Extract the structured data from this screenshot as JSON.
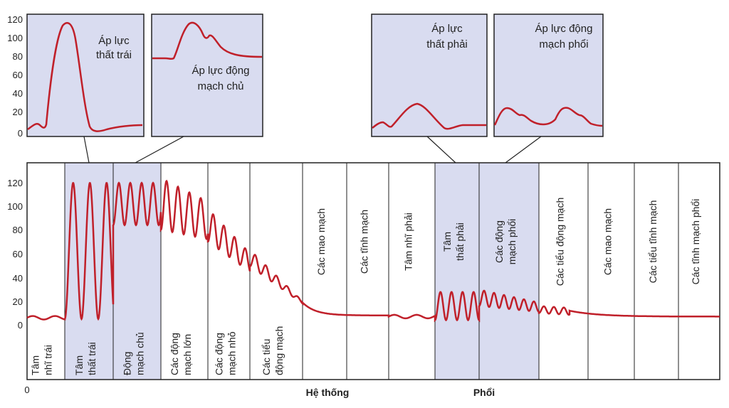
{
  "colors": {
    "curve": "#c0202a",
    "highlight": "#d9dcf0",
    "border": "#222222"
  },
  "y_ticks": [
    "120",
    "100",
    "80",
    "60",
    "40",
    "20",
    "0"
  ],
  "x_origin_label": "0",
  "sections": {
    "systemic": "Hệ thống",
    "pulmonary": "Phổi"
  },
  "insets": [
    {
      "id": "lv",
      "lines": [
        "Áp lực",
        "thất trái"
      ]
    },
    {
      "id": "ao",
      "lines": [
        "Áp lực động",
        "mạch chủ"
      ]
    },
    {
      "id": "rv",
      "lines": [
        "Áp lực",
        "thất phải"
      ]
    },
    {
      "id": "pa",
      "lines": [
        "Áp lực động",
        "mạch phổi"
      ]
    }
  ],
  "segments": [
    {
      "id": "la",
      "lines": [
        "Tâm",
        "nhĩ trái"
      ],
      "highlight": false
    },
    {
      "id": "lv",
      "lines": [
        "Tâm",
        "thất trái"
      ],
      "highlight": true
    },
    {
      "id": "ao",
      "lines": [
        "Động",
        "mạch chủ"
      ],
      "highlight": true
    },
    {
      "id": "la-art",
      "lines": [
        "Các động",
        "mạch lớn"
      ],
      "highlight": false
    },
    {
      "id": "sm-art",
      "lines": [
        "Các động",
        "mạch nhỏ"
      ],
      "highlight": false
    },
    {
      "id": "arteriole",
      "lines": [
        "Các tiểu",
        "động mạch"
      ],
      "highlight": false
    },
    {
      "id": "cap",
      "lines": [
        "Các mao mạch"
      ],
      "highlight": false
    },
    {
      "id": "vein",
      "lines": [
        "Các tĩnh mạch"
      ],
      "highlight": false
    },
    {
      "id": "ra",
      "lines": [
        "Tâm nhĩ phải"
      ],
      "highlight": false
    },
    {
      "id": "rv",
      "lines": [
        "Tâm",
        "thất phải"
      ],
      "highlight": true
    },
    {
      "id": "pa",
      "lines": [
        "Các động",
        "mạch phổi"
      ],
      "highlight": true
    },
    {
      "id": "p-arteriole",
      "lines": [
        "Các tiểu động mạch"
      ],
      "highlight": false
    },
    {
      "id": "p-cap",
      "lines": [
        "Các mao mạch"
      ],
      "highlight": false
    },
    {
      "id": "p-venule",
      "lines": [
        "Các tiểu tĩnh mạch"
      ],
      "highlight": false
    },
    {
      "id": "p-vein",
      "lines": [
        "Các tĩnh mạch phổi"
      ],
      "highlight": false
    }
  ]
}
